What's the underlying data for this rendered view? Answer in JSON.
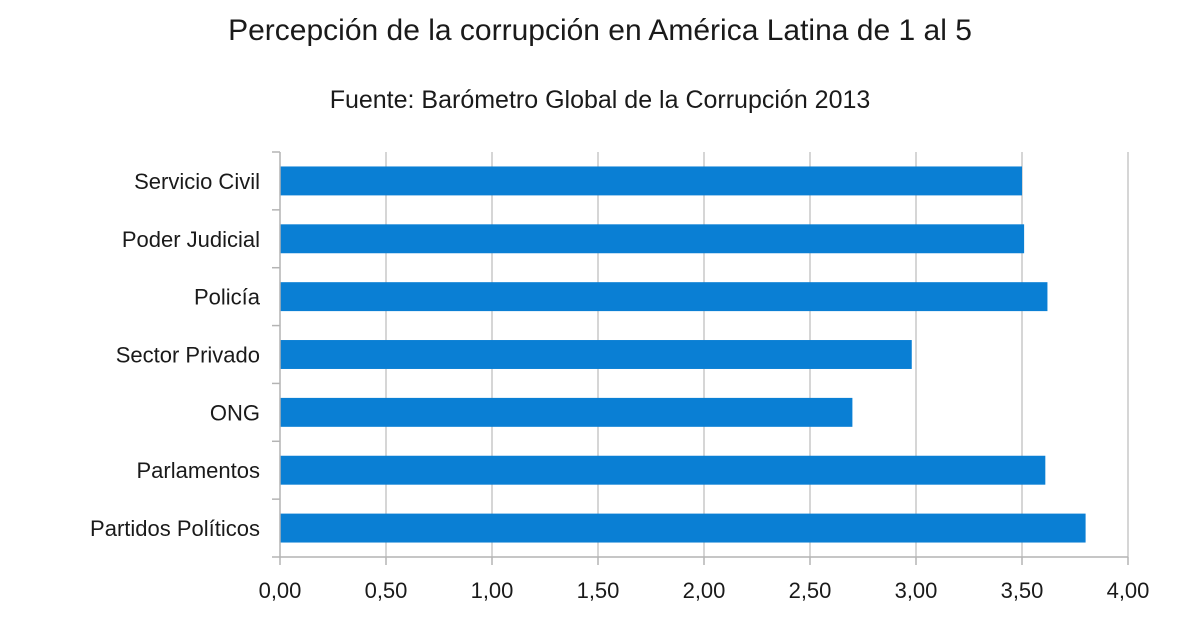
{
  "chart_data": {
    "type": "bar",
    "orientation": "horizontal",
    "title": "Percepción de la corrupción en América Latina de 1 al 5",
    "subtitle": "Fuente: Barómetro Global de la Corrupción 2013",
    "categories": [
      "Servicio Civil",
      "Poder Judicial",
      "Policía",
      "Sector Privado",
      "ONG",
      "Parlamentos",
      "Partidos Políticos"
    ],
    "values": [
      3.5,
      3.51,
      3.62,
      2.98,
      2.7,
      3.61,
      3.8
    ],
    "xlim": [
      0,
      4
    ],
    "x_ticks": [
      "0,00",
      "0,50",
      "1,00",
      "1,50",
      "2,00",
      "2,50",
      "3,00",
      "3,50",
      "4,00"
    ],
    "grid": "vertical",
    "legend": "none",
    "colors": {
      "bar": "#0a7fd4",
      "grid": "#c8c8c8",
      "axis": "#b4b4b4"
    }
  }
}
